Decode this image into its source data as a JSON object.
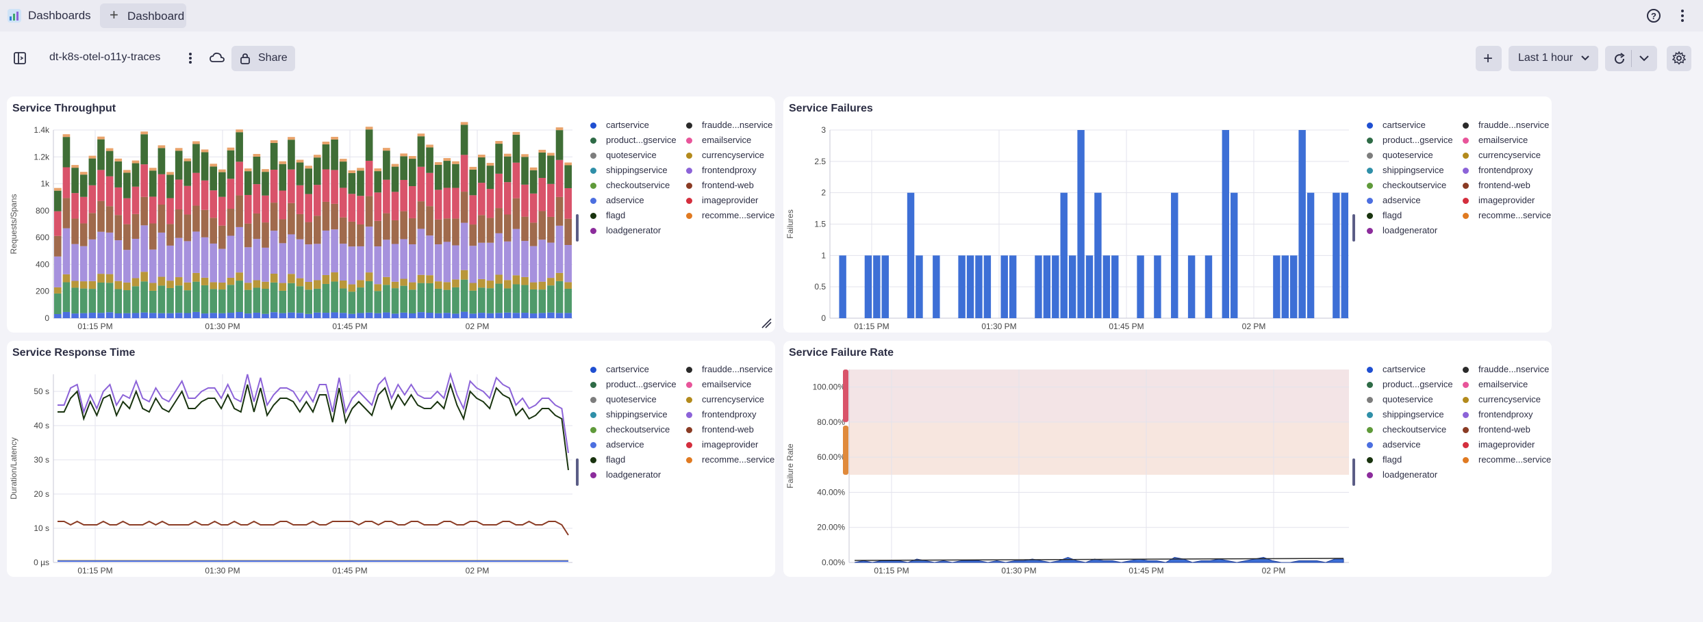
{
  "app": {
    "name": "Dashboards",
    "tab_label": "Dashboard"
  },
  "toolbar": {
    "dashboard_title": "dt-k8s-otel-o11y-traces",
    "share_label": "Share",
    "timeframe_label": "Last 1 hour"
  },
  "legend": [
    {
      "label": "cartservice",
      "color": "#1f4fd1"
    },
    {
      "label": "fraudde...nservice",
      "color": "#2a2a2a"
    },
    {
      "label": "product...gservice",
      "color": "#2e6b46"
    },
    {
      "label": "emailservice",
      "color": "#e8559a"
    },
    {
      "label": "quoteservice",
      "color": "#7d7d7d"
    },
    {
      "label": "currencyservice",
      "color": "#b38a1c"
    },
    {
      "label": "shippingservice",
      "color": "#2f8fa8"
    },
    {
      "label": "frontendproxy",
      "color": "#8c63d8"
    },
    {
      "label": "checkoutservice",
      "color": "#5f9a3a"
    },
    {
      "label": "frontend-web",
      "color": "#8a3b24"
    },
    {
      "label": "adservice",
      "color": "#4c6fe0"
    },
    {
      "label": "imageprovider",
      "color": "#d42e3d"
    },
    {
      "label": "flagd",
      "color": "#18330e"
    },
    {
      "label": "recomme...service",
      "color": "#e07a21"
    },
    {
      "label": "loadgenerator",
      "color": "#8c2c9c"
    }
  ],
  "panels": {
    "throughput": {
      "title": "Service Throughput",
      "ylabel": "Requests/Spans",
      "yticks": [
        "0",
        "200",
        "400",
        "600",
        "800",
        "1k",
        "1.2k",
        "1.4k"
      ],
      "xticks": [
        "01:15 PM",
        "01:30 PM",
        "01:45 PM",
        "02 PM"
      ]
    },
    "failures": {
      "title": "Service Failures",
      "ylabel": "Failures",
      "yticks": [
        "0",
        "0.5",
        "1",
        "1.5",
        "2",
        "2.5",
        "3"
      ],
      "xticks": [
        "01:15 PM",
        "01:30 PM",
        "01:45 PM",
        "02 PM"
      ]
    },
    "response": {
      "title": "Service Response Time",
      "ylabel": "Duration/Latency",
      "yticks": [
        "0 µs",
        "10 s",
        "20 s",
        "30 s",
        "40 s",
        "50 s"
      ],
      "xticks": [
        "01:15 PM",
        "01:30 PM",
        "01:45 PM",
        "02 PM"
      ]
    },
    "failrate": {
      "title": "Service Failure Rate",
      "ylabel": "Failure Rate",
      "yticks": [
        "0.00%",
        "20.00%",
        "40.00%",
        "60.00%",
        "80.00%",
        "100.00%"
      ],
      "xticks": [
        "01:15 PM",
        "01:30 PM",
        "01:45 PM",
        "02 PM"
      ]
    }
  },
  "chart_data": [
    {
      "type": "bar",
      "title": "Service Throughput",
      "ylabel": "Requests/Spans",
      "ylim": [
        0,
        1400
      ],
      "stacked": true,
      "bar_count": 60,
      "series": [
        {
          "name": "cartservice",
          "typical": 40
        },
        {
          "name": "product...gservice",
          "typical": 200
        },
        {
          "name": "currencyservice",
          "typical": 60
        },
        {
          "name": "frontendproxy",
          "typical": 300
        },
        {
          "name": "frontend-web",
          "typical": 200
        },
        {
          "name": "imageprovider",
          "typical": 240
        },
        {
          "name": "flagd",
          "typical": 200
        }
      ]
    },
    {
      "type": "bar",
      "title": "Service Failures",
      "ylabel": "Failures",
      "ylim": [
        0,
        3
      ],
      "values": [
        0,
        1,
        0,
        0,
        1,
        1,
        1,
        0,
        0,
        2,
        1,
        0,
        1,
        0,
        0,
        1,
        1,
        1,
        1,
        0,
        1,
        1,
        0,
        0,
        1,
        1,
        1,
        2,
        1,
        3,
        1,
        2,
        1,
        1,
        0,
        0,
        1,
        0,
        1,
        0,
        2,
        0,
        1,
        0,
        1,
        0,
        3,
        2,
        0,
        0,
        0,
        0,
        1,
        1,
        1,
        3,
        2,
        0,
        0,
        2,
        2
      ]
    },
    {
      "type": "line",
      "title": "Service Response Time",
      "ylabel": "Duration/Latency",
      "ylim": [
        0,
        55
      ],
      "series": [
        {
          "name": "frontendproxy",
          "values": [
            46,
            46,
            51,
            52,
            44,
            49,
            45,
            50,
            52,
            46,
            49,
            48,
            53,
            48,
            47,
            51,
            48,
            47,
            50,
            53,
            48,
            48,
            50,
            51,
            51,
            48,
            52,
            48,
            47,
            55,
            47,
            54,
            46,
            49,
            51,
            51,
            50,
            47,
            50,
            47,
            52,
            52,
            44,
            54,
            44,
            48,
            50,
            48,
            46,
            52,
            54,
            48,
            52,
            49,
            52,
            49,
            48,
            48,
            50,
            48,
            55,
            49,
            45,
            53,
            51,
            50,
            48,
            54,
            52,
            51,
            46,
            48,
            45,
            46,
            48,
            48,
            46,
            45,
            32
          ]
        },
        {
          "name": "flagd",
          "values": [
            44,
            44,
            48,
            50,
            42,
            47,
            43,
            48,
            49,
            43,
            47,
            45,
            50,
            45,
            44,
            48,
            45,
            44,
            47,
            50,
            45,
            45,
            47,
            48,
            48,
            45,
            49,
            45,
            44,
            52,
            44,
            51,
            43,
            46,
            48,
            48,
            47,
            44,
            47,
            44,
            49,
            49,
            41,
            51,
            41,
            45,
            47,
            45,
            43,
            49,
            51,
            45,
            49,
            46,
            49,
            46,
            45,
            45,
            47,
            45,
            52,
            46,
            42,
            50,
            48,
            47,
            45,
            51,
            49,
            48,
            43,
            45,
            42,
            43,
            45,
            45,
            43,
            42,
            27
          ]
        },
        {
          "name": "frontend-web",
          "values": [
            12,
            12,
            11,
            12,
            11,
            11,
            11,
            12,
            11,
            11,
            12,
            11,
            11,
            11,
            12,
            11,
            12,
            11,
            11,
            11,
            11,
            12,
            11,
            11,
            12,
            11,
            11,
            12,
            11,
            11,
            12,
            11,
            11,
            11,
            12,
            12,
            11,
            11,
            11,
            12,
            11,
            11,
            12,
            12,
            12,
            12,
            11,
            12,
            12,
            11,
            12,
            12,
            11,
            11,
            12,
            12,
            11,
            11,
            11,
            12,
            12,
            11,
            11,
            12,
            12,
            11,
            11,
            11,
            12,
            12,
            11,
            11,
            12,
            11,
            11,
            12,
            12,
            11,
            8
          ]
        },
        {
          "name": "currencyservice",
          "values": [
            0.5,
            0.5,
            0.5,
            0.5,
            0.5,
            0.5,
            0.5,
            0.5,
            0.5,
            0.5,
            0.5,
            0.5
          ]
        }
      ]
    },
    {
      "type": "area",
      "title": "Service Failure Rate",
      "ylabel": "Failure Rate",
      "ylim": [
        0,
        110
      ],
      "threshold_bands": [
        {
          "from": 50,
          "to": 80,
          "color": "#f7e6df"
        },
        {
          "from": 80,
          "to": 110,
          "color": "#f3e4e6"
        }
      ],
      "series": [
        {
          "name": "cartservice",
          "values": [
            0,
            1,
            0,
            1,
            1,
            1,
            0,
            2,
            1,
            0,
            1,
            0,
            1,
            1,
            1,
            0,
            1,
            0,
            1,
            1,
            2,
            1,
            0,
            1,
            3,
            1,
            0,
            2,
            1,
            1,
            0,
            1,
            2,
            1,
            1,
            0,
            3,
            2,
            0,
            1,
            1,
            2,
            1,
            0,
            1,
            2,
            3,
            1,
            0,
            0,
            1,
            1,
            1,
            0,
            2,
            2
          ]
        }
      ]
    }
  ]
}
